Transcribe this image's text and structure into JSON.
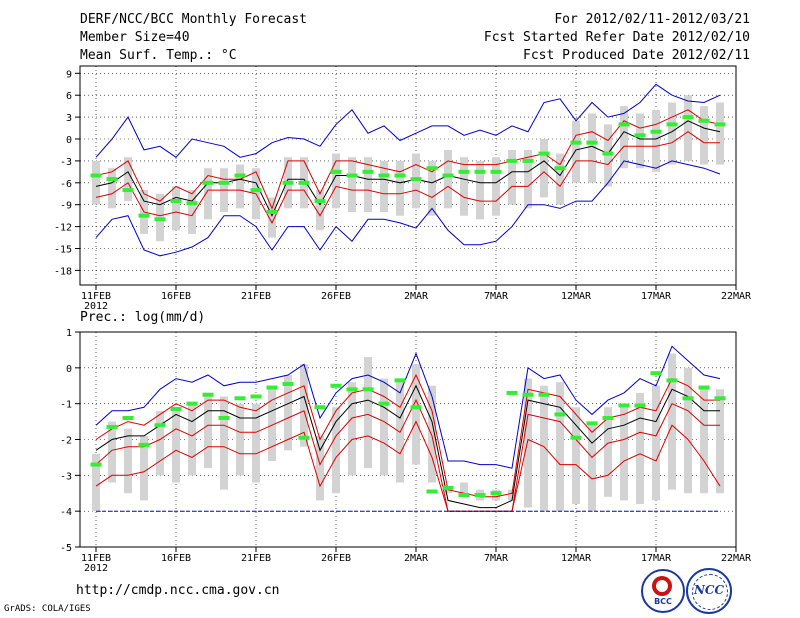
{
  "header": {
    "title": "DERF/NCC/BCC Monthly Forecast",
    "member_size": "Member Size=40",
    "variable1": "Mean Surf. Temp.: °C",
    "period": "For 2012/02/11-2012/03/21",
    "refer_date": "Fcst Started Refer Date 2012/02/10",
    "produced_date": "Fcst Produced Date 2012/02/11"
  },
  "footer": {
    "url": "http://cmdp.ncc.cma.gov.cn",
    "grads": "GrADS: COLA/IGES",
    "logo1_text": "BCC",
    "logo2_text": "NCC"
  },
  "colors": {
    "envelope": "#0000cc",
    "spread": "#dd0000",
    "mean": "#000000",
    "box": "#d3d3d3",
    "observed": "#33ee33"
  },
  "chart_data": [
    {
      "type": "line",
      "title": "Mean Surf. Temp.: °C",
      "x_tick_labels": [
        "11FEB\n2012",
        "16FEB",
        "21FEB",
        "26FEB",
        "2MAR",
        "7MAR",
        "12MAR",
        "17MAR",
        "22MAR"
      ],
      "x_days": 40,
      "ylim": [
        -20,
        10
      ],
      "y_ticks": [
        -18,
        -15,
        -12,
        -9,
        -6,
        -3,
        0,
        3,
        6,
        9
      ],
      "series": [
        {
          "name": "max",
          "values": [
            -13.5,
            -11,
            -10.5,
            -15.2,
            -16,
            -15.5,
            -14.8,
            -13.5,
            -10.5,
            -10.5,
            -12,
            -15.2,
            -12,
            -12,
            -15.2,
            -12,
            -14,
            -11,
            -11,
            -11.5,
            -12.2,
            -9.5,
            -12.5,
            -14.5,
            -14.5,
            -14,
            -12,
            -9,
            -9,
            -9.5,
            -8.5,
            -8.5,
            -6,
            -3,
            -3.5,
            -4,
            -3,
            -3.5,
            -4,
            -4.8
          ]
        },
        {
          "name": "min_top",
          "values": [
            -2.5,
            0,
            3,
            -1.5,
            -1,
            -2.5,
            0,
            -0.5,
            -1,
            -2.5,
            -2,
            -0.5,
            0.2,
            0,
            -1,
            2,
            4,
            0.8,
            1.8,
            -0.2,
            0.8,
            1.8,
            1.8,
            0.5,
            1.2,
            0.5,
            1.8,
            1,
            5,
            5.5,
            2.5,
            5,
            3,
            3.5,
            5,
            7.5,
            6,
            5.2,
            5,
            6
          ]
        },
        {
          "name": "upper",
          "values": [
            -5,
            -4.5,
            -3,
            -7.5,
            -8.5,
            -6.5,
            -7.5,
            -5,
            -5.5,
            -5.5,
            -4.5,
            -9.5,
            -3,
            -3,
            -7.5,
            -3,
            -3,
            -3.5,
            -4,
            -4.5,
            -3.5,
            -4.5,
            -3,
            -3.5,
            -3.5,
            -3.5,
            -3,
            -2.5,
            -2,
            -3.5,
            0.5,
            1,
            -0.2,
            2.5,
            1.5,
            2,
            3,
            4,
            2.5,
            2
          ]
        },
        {
          "name": "mean",
          "values": [
            -6.5,
            -6,
            -4.5,
            -8.5,
            -9,
            -8,
            -8.5,
            -6,
            -6,
            -5.5,
            -6,
            -10.5,
            -5.5,
            -5.5,
            -9,
            -5,
            -5,
            -5.5,
            -5.5,
            -6,
            -5.5,
            -6,
            -5,
            -5.5,
            -6,
            -6,
            -4.5,
            -4.5,
            -3,
            -5,
            -1.5,
            -1,
            -2,
            1,
            0,
            0,
            1,
            2.5,
            1.5,
            1
          ]
        },
        {
          "name": "lower",
          "values": [
            -8,
            -7.5,
            -6,
            -10,
            -10.5,
            -10,
            -10.5,
            -7,
            -7,
            -7,
            -7.5,
            -11.5,
            -7,
            -7,
            -10.5,
            -6.5,
            -7,
            -7,
            -7.5,
            -7.5,
            -7,
            -8,
            -6.5,
            -8,
            -8.5,
            -8.5,
            -6.5,
            -6.5,
            -4.5,
            -6.5,
            -3,
            -3,
            -3.5,
            -1,
            -1,
            -1,
            -0.5,
            1,
            -0.5,
            -0.5
          ]
        }
      ],
      "boxes": [
        [
          -9,
          -3
        ],
        [
          -9.5,
          -4
        ],
        [
          -8.5,
          -2.5
        ],
        [
          -13,
          -7
        ],
        [
          -14,
          -7.5
        ],
        [
          -12.5,
          -6.5
        ],
        [
          -13,
          -7
        ],
        [
          -11,
          -4
        ],
        [
          -10,
          -4
        ],
        [
          -9.5,
          -3.5
        ],
        [
          -11,
          -4
        ],
        [
          -13.5,
          -8
        ],
        [
          -9.5,
          -2.5
        ],
        [
          -9.5,
          -2.5
        ],
        [
          -12.5,
          -7
        ],
        [
          -9.5,
          -2
        ],
        [
          -10,
          -2.5
        ],
        [
          -10,
          -2.5
        ],
        [
          -10,
          -3
        ],
        [
          -10.5,
          -3
        ],
        [
          -9.5,
          -2
        ],
        [
          -10.5,
          -3
        ],
        [
          -9.5,
          -1.5
        ],
        [
          -10.5,
          -2.5
        ],
        [
          -11,
          -3
        ],
        [
          -10.5,
          -2.5
        ],
        [
          -9,
          -1.5
        ],
        [
          -9.5,
          -1.5
        ],
        [
          -8,
          0
        ],
        [
          -9,
          -2
        ],
        [
          -6,
          2.5
        ],
        [
          -6,
          3.5
        ],
        [
          -6.5,
          2
        ],
        [
          -4,
          4.5
        ],
        [
          -4,
          3.5
        ],
        [
          -4.5,
          4
        ],
        [
          -3.5,
          5
        ],
        [
          -3,
          6
        ],
        [
          -3.5,
          4.5
        ],
        [
          -3.5,
          5
        ]
      ],
      "observed": [
        -5,
        -5.5,
        -7,
        -10.5,
        -11,
        -8.5,
        -8.8,
        -6,
        -6,
        -5,
        -7,
        -10,
        -6,
        -6,
        -8.5,
        -4.5,
        -5,
        -4.5,
        -5,
        -5,
        -5.5,
        -4,
        -5,
        -4.5,
        -4.5,
        -4.5,
        -3,
        -3,
        -2,
        -4,
        -0.5,
        -0.5,
        -2,
        2,
        0.5,
        1,
        2,
        3,
        2.5,
        2
      ]
    },
    {
      "type": "line",
      "title": "Prec.: log(mm/d)",
      "x_tick_labels": [
        "11FEB\n2012",
        "16FEB",
        "21FEB",
        "26FEB",
        "2MAR",
        "7MAR",
        "12MAR",
        "17MAR",
        "22MAR"
      ],
      "x_days": 40,
      "ylim": [
        -5,
        1
      ],
      "y_ticks": [
        -5,
        -4,
        -3,
        -2,
        -1,
        0,
        1
      ],
      "series": [
        {
          "name": "max",
          "values": [
            -1.6,
            -1.2,
            -1.2,
            -1.1,
            -0.6,
            -0.3,
            -0.4,
            -0.2,
            -0.5,
            -0.4,
            -0.4,
            -0.3,
            -0.2,
            0.1,
            -1.4,
            -0.7,
            -0.3,
            -0.2,
            -0.4,
            -0.7,
            0.4,
            -0.8,
            -2.6,
            -2.6,
            -2.7,
            -2.7,
            -2.8,
            0,
            -0.3,
            -0.2,
            -0.9,
            -1.3,
            -0.9,
            -0.7,
            -0.3,
            -0.5,
            0.6,
            0.2,
            -0.2,
            -0.3
          ]
        },
        {
          "name": "upper",
          "values": [
            -2.0,
            -1.7,
            -1.5,
            -1.6,
            -1.3,
            -1.0,
            -1.2,
            -0.9,
            -0.9,
            -1.1,
            -1.2,
            -0.9,
            -0.7,
            -0.5,
            -2.0,
            -1.2,
            -0.7,
            -0.6,
            -0.8,
            -1.1,
            -0.2,
            -1.2,
            -3.4,
            -3.5,
            -3.6,
            -3.6,
            -3.5,
            -0.6,
            -0.7,
            -0.8,
            -1.3,
            -1.8,
            -1.4,
            -1.3,
            -1.1,
            -1.2,
            -0.3,
            -0.5,
            -0.9,
            -0.9
          ]
        },
        {
          "name": "mean",
          "values": [
            -2.3,
            -2.0,
            -1.9,
            -1.9,
            -1.6,
            -1.3,
            -1.5,
            -1.2,
            -1.2,
            -1.4,
            -1.4,
            -1.2,
            -1.0,
            -0.8,
            -2.3,
            -1.5,
            -1.0,
            -0.9,
            -1.1,
            -1.4,
            -0.5,
            -1.5,
            -3.7,
            -3.8,
            -3.9,
            -3.9,
            -3.7,
            -0.9,
            -1.0,
            -1.1,
            -1.6,
            -2.1,
            -1.7,
            -1.6,
            -1.4,
            -1.5,
            -0.6,
            -0.8,
            -1.2,
            -1.2
          ]
        },
        {
          "name": "lower",
          "values": [
            -2.7,
            -2.3,
            -2.2,
            -2.2,
            -2.0,
            -1.7,
            -1.9,
            -1.6,
            -1.6,
            -1.8,
            -1.8,
            -1.6,
            -1.4,
            -1.2,
            -2.7,
            -1.9,
            -1.4,
            -1.3,
            -1.5,
            -1.8,
            -0.9,
            -1.9,
            -4.0,
            -4.0,
            -4.0,
            -4.0,
            -4.0,
            -1.3,
            -1.4,
            -1.5,
            -2.0,
            -2.5,
            -2.1,
            -2.0,
            -1.8,
            -1.9,
            -1.0,
            -1.2,
            -1.6,
            -1.6
          ]
        },
        {
          "name": "min",
          "values": [
            -3.3,
            -3.0,
            -3.0,
            -2.9,
            -2.6,
            -2.3,
            -2.5,
            -2.2,
            -2.2,
            -2.4,
            -2.4,
            -2.2,
            -2.0,
            -1.8,
            -3.3,
            -2.5,
            -2.0,
            -1.9,
            -2.1,
            -2.4,
            -1.5,
            -2.5,
            -4.0,
            -4.0,
            -4.0,
            -4.0,
            -4.0,
            -2.0,
            -2.2,
            -2.7,
            -2.7,
            -3.1,
            -3.0,
            -2.6,
            -2.4,
            -2.6,
            -1.6,
            -2.0,
            -2.6,
            -3.3
          ]
        },
        {
          "name": "floor",
          "values": [
            -4,
            -4,
            -4,
            -4,
            -4,
            -4,
            -4,
            -4,
            -4,
            -4,
            -4,
            -4,
            -4,
            -4,
            -4,
            -4,
            -4,
            -4,
            -4,
            -4,
            -4,
            -4,
            -4,
            -4,
            -4,
            -4,
            -4,
            -4,
            -4,
            -4,
            -4,
            -4,
            -4,
            -4,
            -4,
            -4,
            -4,
            -4,
            -4,
            -4
          ]
        }
      ],
      "boxes": [
        [
          -4,
          -2.4
        ],
        [
          -3.2,
          -1.5
        ],
        [
          -3.5,
          -1.7
        ],
        [
          -3.7,
          -1.9
        ],
        [
          -3.0,
          -1.2
        ],
        [
          -3.2,
          -1.2
        ],
        [
          -3.0,
          -1.0
        ],
        [
          -2.8,
          -0.8
        ],
        [
          -3.4,
          -0.8
        ],
        [
          -3.0,
          -1.0
        ],
        [
          -3.2,
          -1.0
        ],
        [
          -2.6,
          -0.5
        ],
        [
          -2.3,
          -0.2
        ],
        [
          -2.2,
          0.1
        ],
        [
          -3.7,
          -1.9
        ],
        [
          -3.5,
          -1.1
        ],
        [
          -3.0,
          -0.4
        ],
        [
          -2.8,
          0.3
        ],
        [
          -3.0,
          -0.3
        ],
        [
          -3.2,
          -0.4
        ],
        [
          -2.7,
          0.1
        ],
        [
          -3.2,
          -0.5
        ],
        [
          -3.5,
          -3.3
        ],
        [
          -3.5,
          -3.2
        ],
        [
          -3.7,
          -3.4
        ],
        [
          -3.7,
          -3.4
        ],
        [
          -3.7,
          -3.4
        ],
        [
          -3.9,
          -0.3
        ],
        [
          -4.0,
          -0.5
        ],
        [
          -4.0,
          -0.4
        ],
        [
          -3.8,
          -1.1
        ],
        [
          -4.0,
          -1.6
        ],
        [
          -3.6,
          -1.1
        ],
        [
          -3.7,
          -1.0
        ],
        [
          -3.8,
          -0.7
        ],
        [
          -3.7,
          -0.5
        ],
        [
          -3.4,
          0.4
        ],
        [
          -3.5,
          0.0
        ],
        [
          -3.5,
          -0.6
        ],
        [
          -3.5,
          -0.6
        ]
      ],
      "observed": [
        -2.7,
        -1.65,
        -1.4,
        -2.15,
        -1.6,
        -1.15,
        -1.0,
        -0.75,
        -1.4,
        -0.85,
        -0.8,
        -0.55,
        -0.45,
        -1.95,
        -1.1,
        -0.5,
        -0.6,
        -0.6,
        -1.0,
        -0.35,
        -1.1,
        -3.45,
        -3.35,
        -3.55,
        -3.55,
        -3.5,
        -0.7,
        -0.75,
        -0.75,
        -1.3,
        -1.95,
        -1.55,
        -1.4,
        -1.05,
        -1.05,
        -0.15,
        -0.35,
        -0.85,
        -0.55,
        -0.85
      ]
    }
  ]
}
